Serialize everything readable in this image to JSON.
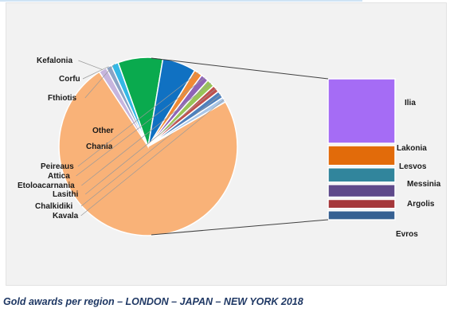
{
  "caption": "Gold awards per region – LONDON – JAPAN – NEW YORK 2018",
  "chart_data": {
    "type": "pie",
    "subtype": "pie-of-pie",
    "title": "",
    "main_slices": [
      {
        "label": "",
        "value": 73.0,
        "color": "#f9b278",
        "is_group": true
      },
      {
        "label": "Kefalonia",
        "value": 1.4,
        "color": "#c6b5dd"
      },
      {
        "label": "Corfu",
        "value": 1.0,
        "color": "#8ba3c5"
      },
      {
        "label": "Fthiotis",
        "value": 1.3,
        "color": "#34b8e5"
      },
      {
        "label": "Other",
        "value": 8.0,
        "color": "#0aaa4e"
      },
      {
        "label": "Chania",
        "value": 6.0,
        "color": "#1071c2"
      },
      {
        "label": "Peireaus",
        "value": 1.5,
        "color": "#f08a35"
      },
      {
        "label": "Attica",
        "value": 1.4,
        "color": "#8e64b7"
      },
      {
        "label": "Etoloacarnania",
        "value": 1.4,
        "color": "#98c458"
      },
      {
        "label": "Lasithi",
        "value": 1.3,
        "color": "#c0504d"
      },
      {
        "label": "Chalkidiki",
        "value": 1.3,
        "color": "#4f81bd"
      },
      {
        "label": "Kavala",
        "value": 0.9,
        "color": "#a9c6e8"
      }
    ],
    "secondary_bar": [
      {
        "label": "Ilia",
        "value": 36,
        "color": "#a56cf5"
      },
      {
        "label": "Lakonia",
        "value": 11,
        "color": "#e26b0a"
      },
      {
        "label": "Lesvos",
        "value": 8,
        "color": "#31859c"
      },
      {
        "label": "Messinia",
        "value": 7,
        "color": "#5f4a8b"
      },
      {
        "label": "Argolis",
        "value": 5,
        "color": "#a5373a"
      },
      {
        "label": "Evros",
        "value": 5,
        "color": "#366092"
      }
    ],
    "legend": "none",
    "grid": false
  }
}
